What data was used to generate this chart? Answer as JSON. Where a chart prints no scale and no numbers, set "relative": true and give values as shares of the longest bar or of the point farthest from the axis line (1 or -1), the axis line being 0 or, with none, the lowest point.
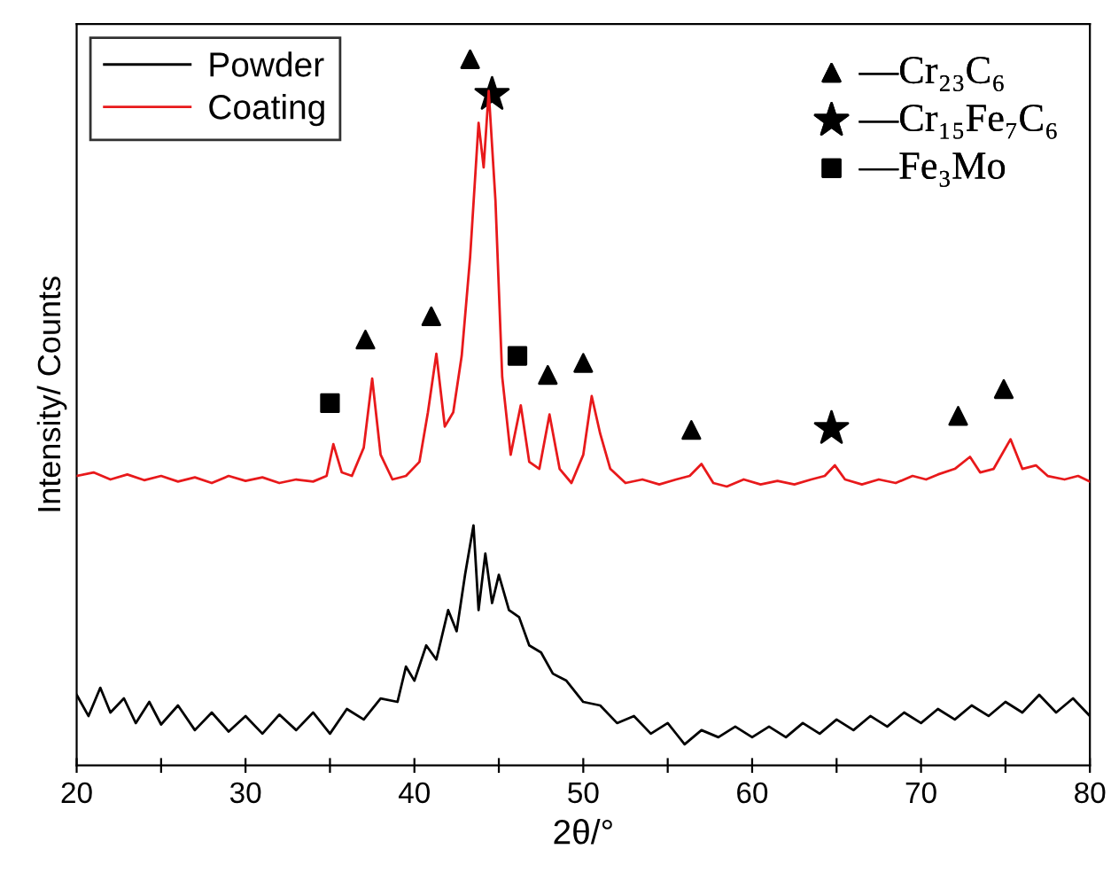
{
  "chart_data": {
    "type": "line",
    "relative": true,
    "xlabel": "2θ/°",
    "ylabel": "Intensity/ Counts",
    "xlim": [
      20,
      80
    ],
    "xticks": [
      20,
      {
        "value": 25,
        "label": null
      },
      30,
      {
        "value": 35,
        "label": null
      },
      40,
      {
        "value": 45,
        "label": null
      },
      50,
      {
        "value": 55,
        "label": null
      },
      60,
      {
        "value": 65,
        "label": null
      },
      70,
      {
        "value": 75,
        "label": null
      },
      80
    ],
    "tick_labels": "x",
    "grid": false,
    "legend": "top left",
    "line_style": "solid",
    "series": [
      {
        "name": "Powder",
        "color": "#000000",
        "x": [
          20,
          20.7,
          21.4,
          22,
          22.8,
          23.5,
          24.3,
          25,
          26,
          27,
          28,
          29,
          30,
          31,
          32,
          33,
          34,
          35,
          36,
          37,
          38,
          39,
          39.5,
          40,
          40.7,
          41.3,
          42,
          42.5,
          43,
          43.5,
          43.8,
          44.2,
          44.6,
          45,
          45.6,
          46.2,
          46.8,
          47.5,
          48.2,
          49,
          50,
          51,
          52,
          53,
          54,
          55,
          56,
          57,
          58,
          59,
          60,
          61,
          62,
          63,
          64,
          65,
          66,
          67,
          68,
          69,
          70,
          71,
          72,
          73,
          74,
          75,
          76,
          77,
          78,
          79,
          80
        ],
        "values": [
          0.1,
          0.07,
          0.11,
          0.075,
          0.095,
          0.06,
          0.09,
          0.058,
          0.085,
          0.05,
          0.075,
          0.048,
          0.07,
          0.045,
          0.072,
          0.05,
          0.075,
          0.045,
          0.08,
          0.065,
          0.095,
          0.09,
          0.14,
          0.12,
          0.17,
          0.15,
          0.22,
          0.19,
          0.27,
          0.34,
          0.22,
          0.3,
          0.23,
          0.27,
          0.22,
          0.21,
          0.17,
          0.16,
          0.13,
          0.12,
          0.09,
          0.085,
          0.06,
          0.07,
          0.045,
          0.06,
          0.03,
          0.05,
          0.04,
          0.055,
          0.04,
          0.055,
          0.04,
          0.06,
          0.045,
          0.065,
          0.05,
          0.07,
          0.055,
          0.075,
          0.06,
          0.08,
          0.065,
          0.085,
          0.07,
          0.09,
          0.075,
          0.1,
          0.075,
          0.095,
          0.07
        ]
      },
      {
        "name": "Coating",
        "color": "#e8191b",
        "x": [
          20,
          21,
          22,
          23,
          24,
          25,
          26,
          27,
          28,
          29,
          30,
          31,
          32,
          33,
          34,
          34.8,
          35.2,
          35.7,
          36.3,
          37.0,
          37.5,
          38.0,
          38.7,
          39.5,
          40.3,
          40.8,
          41.3,
          41.8,
          42.3,
          42.8,
          43.3,
          43.8,
          44.1,
          44.4,
          44.8,
          45.2,
          45.7,
          46.3,
          46.8,
          47.4,
          48.0,
          48.6,
          49.3,
          50.0,
          50.5,
          51.0,
          51.6,
          52.5,
          53.5,
          54.5,
          55.5,
          56.3,
          57.0,
          57.7,
          58.5,
          59.5,
          60.5,
          61.5,
          62.5,
          63.5,
          64.3,
          64.9,
          65.5,
          66.5,
          67.5,
          68.5,
          69.5,
          70.3,
          71.0,
          72.0,
          72.9,
          73.5,
          74.3,
          75.3,
          76.0,
          76.8,
          77.5,
          78.5,
          79.3,
          80
        ],
        "values": [
          0.41,
          0.415,
          0.405,
          0.412,
          0.404,
          0.41,
          0.402,
          0.408,
          0.4,
          0.41,
          0.403,
          0.408,
          0.4,
          0.405,
          0.402,
          0.41,
          0.455,
          0.415,
          0.41,
          0.45,
          0.548,
          0.44,
          0.405,
          0.41,
          0.43,
          0.5,
          0.583,
          0.48,
          0.5,
          0.58,
          0.72,
          0.91,
          0.847,
          0.955,
          0.8,
          0.55,
          0.44,
          0.51,
          0.43,
          0.42,
          0.497,
          0.42,
          0.4,
          0.44,
          0.523,
          0.47,
          0.42,
          0.4,
          0.405,
          0.398,
          0.405,
          0.41,
          0.427,
          0.4,
          0.395,
          0.405,
          0.398,
          0.403,
          0.398,
          0.405,
          0.41,
          0.425,
          0.405,
          0.398,
          0.405,
          0.4,
          0.41,
          0.405,
          0.412,
          0.42,
          0.437,
          0.415,
          0.42,
          0.462,
          0.42,
          0.425,
          0.41,
          0.405,
          0.41,
          0.402
        ]
      },
      {
        "name": "—Cr₂₃C₆",
        "type": "scatter",
        "marker": "triangle",
        "color": "#000000",
        "x": [
          37.1,
          41.0,
          43.3,
          47.9,
          50.0,
          56.4,
          72.2,
          74.9
        ],
        "values": [
          0.603,
          0.636,
          1.0,
          0.553,
          0.57,
          0.475,
          0.495,
          0.533
        ]
      },
      {
        "name": "—Cr₁₅Fe₇C₆",
        "type": "scatter",
        "marker": "star",
        "color": "#000000",
        "x": [
          44.6,
          64.7
        ],
        "values": [
          0.95,
          0.477
        ]
      },
      {
        "name": "—Fe₃Mo",
        "type": "scatter",
        "marker": "square",
        "color": "#000000",
        "x": [
          35.0,
          46.1
        ],
        "values": [
          0.513,
          0.58
        ]
      }
    ]
  }
}
